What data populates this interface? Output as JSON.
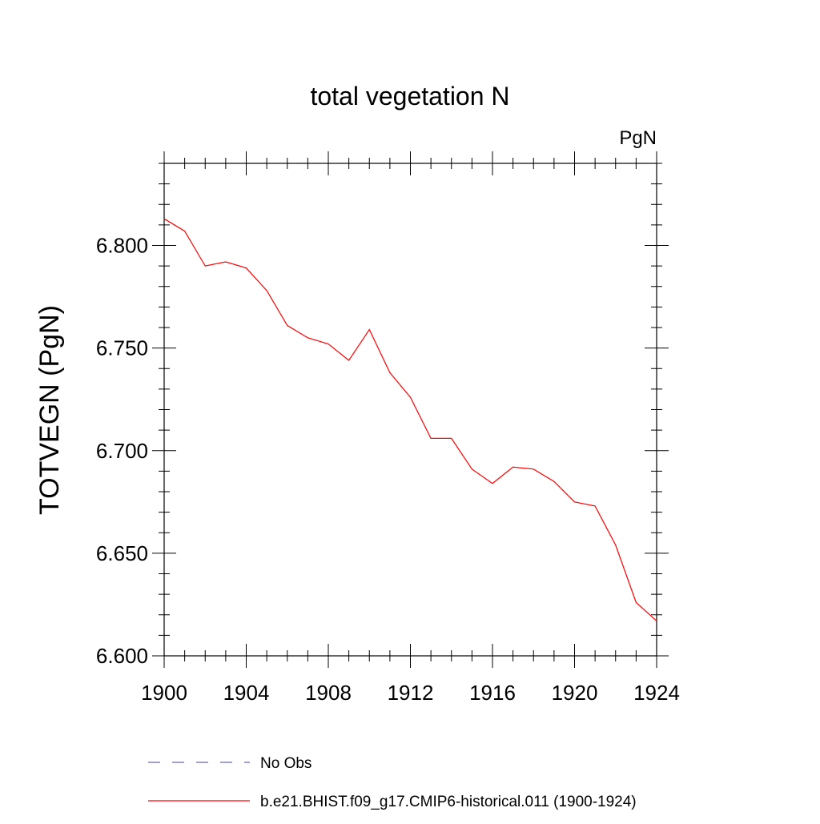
{
  "chart_data": {
    "type": "line",
    "title": "total vegetation N",
    "units_label": "PgN",
    "ylabel": "TOTVEGN  (PgN)",
    "xlabel": "",
    "xlim": [
      1900,
      1924
    ],
    "ylim": [
      6.6,
      6.84
    ],
    "x_ticks": [
      1900,
      1904,
      1908,
      1912,
      1916,
      1920,
      1924
    ],
    "x_tick_labels": [
      "1900",
      "1904",
      "1908",
      "1912",
      "1916",
      "1920",
      "1924"
    ],
    "y_ticks": [
      6.6,
      6.65,
      6.7,
      6.75,
      6.8
    ],
    "y_tick_labels": [
      "6.600",
      "6.650",
      "6.700",
      "6.750",
      "6.800"
    ],
    "grid": false,
    "legend_position": "bottom",
    "x": [
      1900,
      1901,
      1902,
      1903,
      1904,
      1905,
      1906,
      1907,
      1908,
      1909,
      1910,
      1911,
      1912,
      1913,
      1914,
      1915,
      1916,
      1917,
      1918,
      1919,
      1920,
      1921,
      1922,
      1923,
      1924
    ],
    "series": [
      {
        "name": "b.e21.BHIST.f09_g17.CMIP6-historical.011 (1900-1924)",
        "color": "#ff0000",
        "style": "solid",
        "values": [
          6.813,
          6.807,
          6.79,
          6.792,
          6.789,
          6.778,
          6.761,
          6.755,
          6.752,
          6.744,
          6.759,
          6.738,
          6.726,
          6.706,
          6.706,
          6.691,
          6.684,
          6.692,
          6.691,
          6.685,
          6.675,
          6.673,
          6.654,
          6.626,
          6.617
        ]
      }
    ],
    "legend": [
      {
        "label": "No Obs",
        "color": "#6666cc",
        "style": "dashed"
      },
      {
        "label": "b.e21.BHIST.f09_g17.CMIP6-historical.011 (1900-1924)",
        "color": "#ff0000",
        "style": "solid"
      }
    ]
  }
}
